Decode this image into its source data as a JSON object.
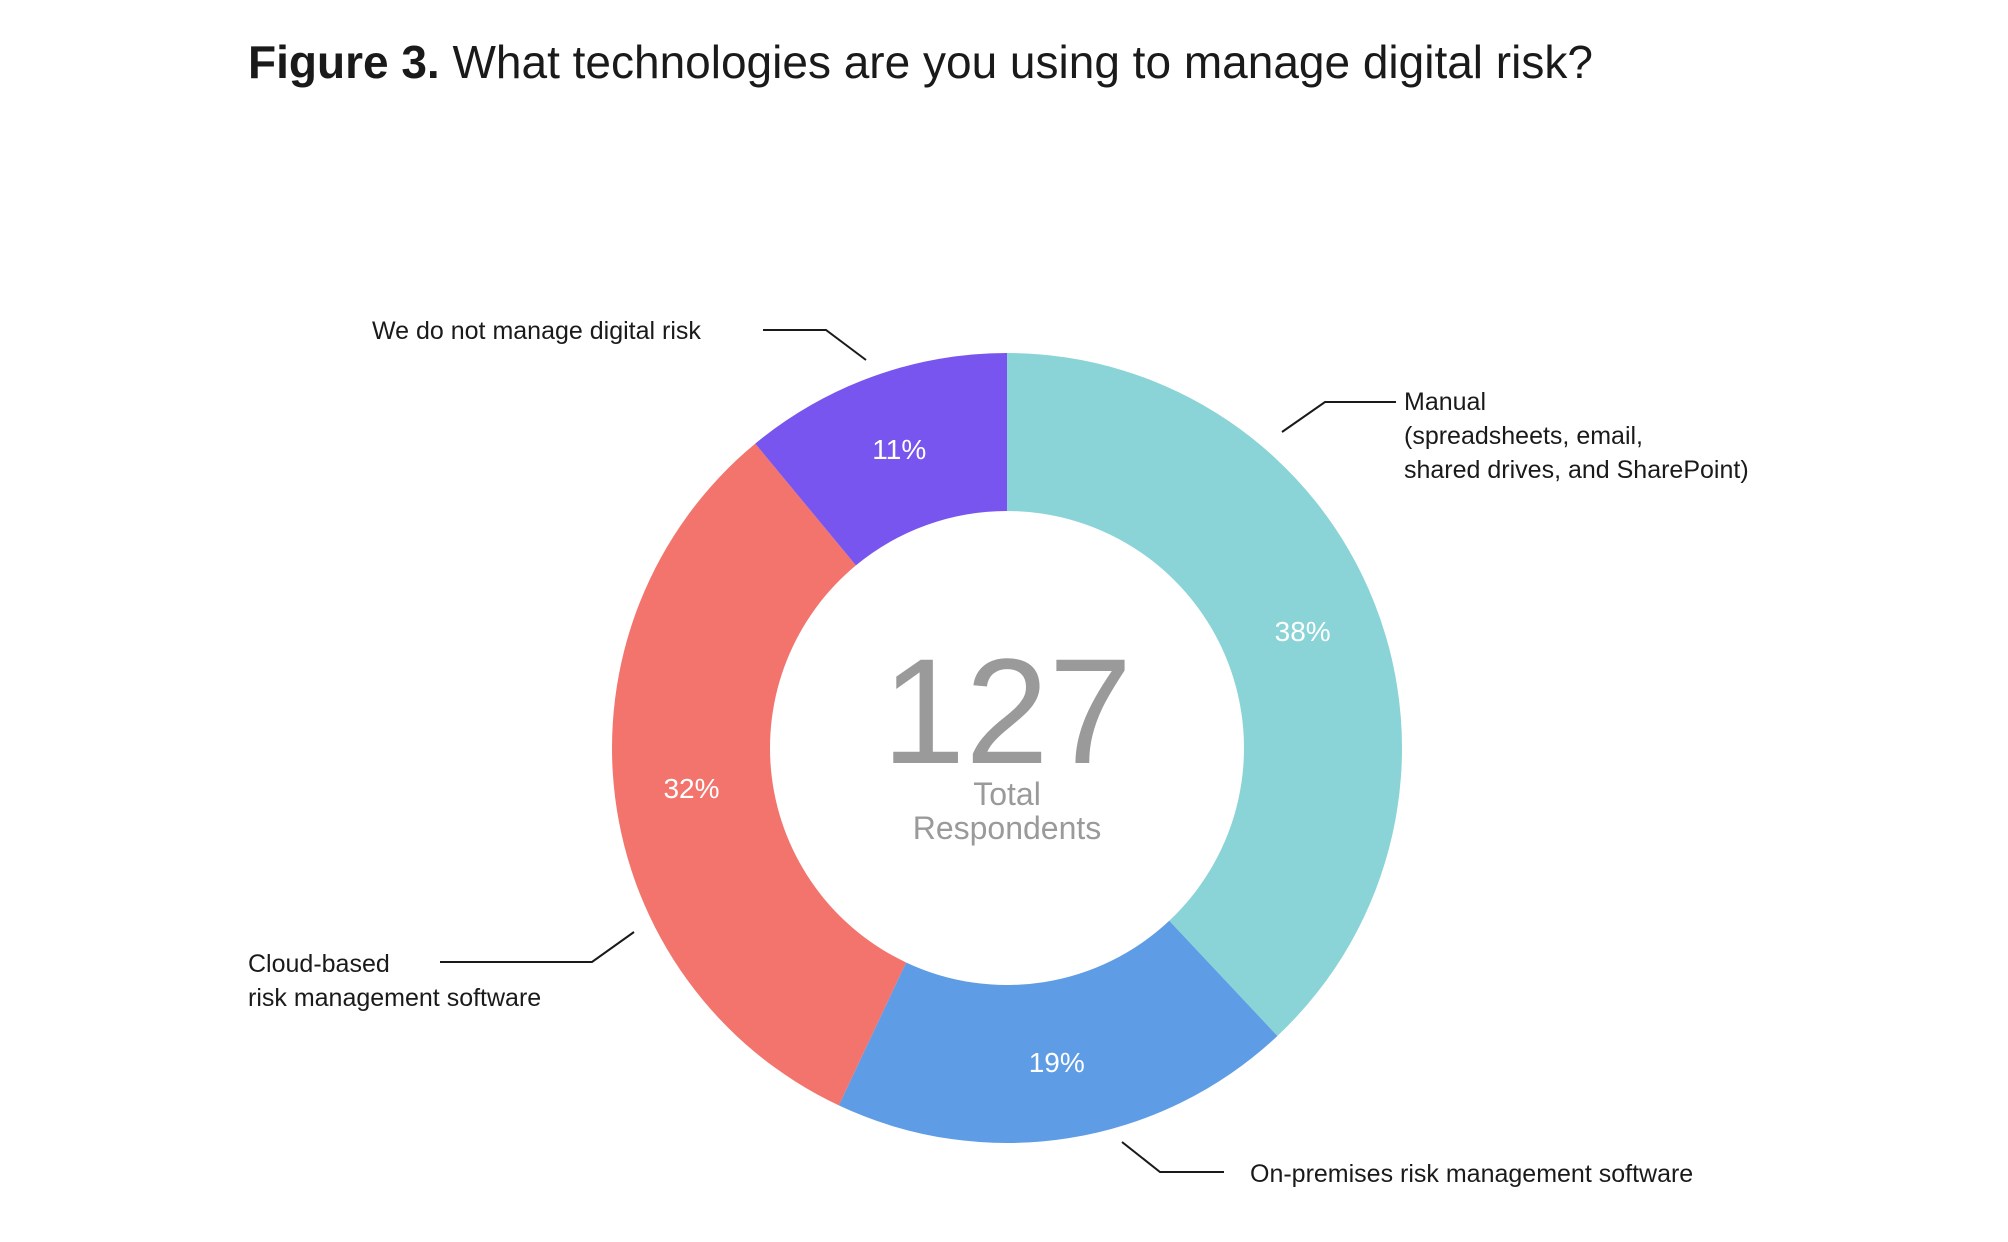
{
  "title_prefix": "Figure 3.",
  "title_text": "What technologies are you using to manage digital risk?",
  "chart_data": {
    "type": "pie",
    "style": "donut",
    "title": "Figure 3. What technologies are you using to manage digital risk?",
    "center_value": "127",
    "center_label_line1": "Total",
    "center_label_line2": "Respondents",
    "slices": [
      {
        "name_lines": [
          "Manual",
          "(spreadsheets, email,",
          "shared drives, and SharePoint)"
        ],
        "value": 38,
        "label": "38%",
        "color": "#8AD4D8"
      },
      {
        "name_lines": [
          "On-premises risk management software"
        ],
        "value": 19,
        "label": "19%",
        "color": "#5E9CE5"
      },
      {
        "name_lines": [
          "Cloud-based",
          "risk management software"
        ],
        "value": 32,
        "label": "32%",
        "color": "#F2746D"
      },
      {
        "name_lines": [
          "We do not manage digital risk"
        ],
        "value": 11,
        "label": "11%",
        "color": "#7855EE"
      }
    ],
    "center_text_color": "#9a9a9a"
  }
}
